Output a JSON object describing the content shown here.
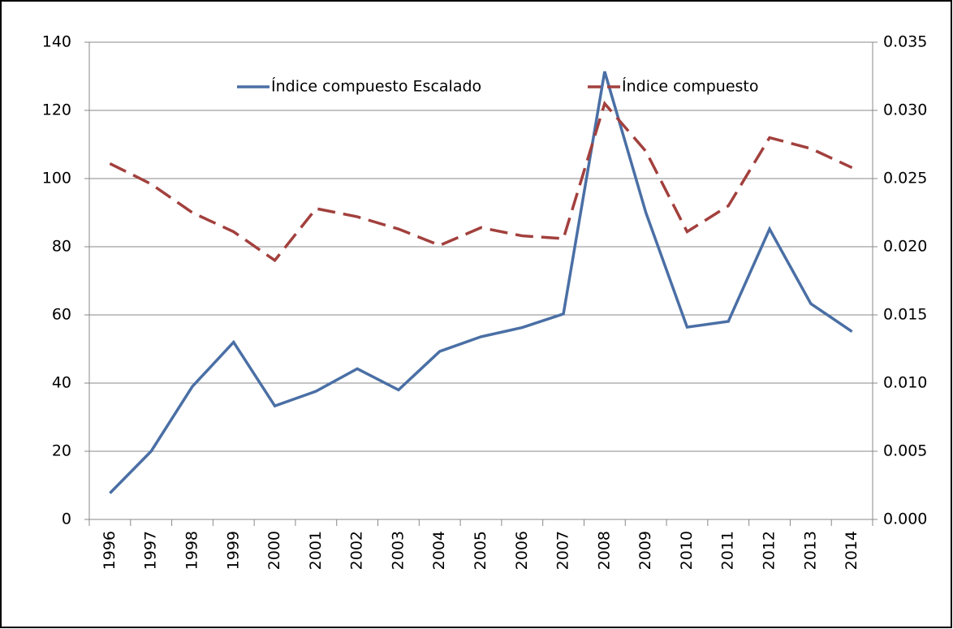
{
  "chart_data": {
    "type": "line",
    "categories": [
      "1996",
      "1997",
      "1998",
      "1999",
      "2000",
      "2001",
      "2002",
      "2003",
      "2004",
      "2005",
      "2006",
      "2007",
      "2008",
      "2009",
      "2010",
      "2011",
      "2012",
      "2013",
      "2014"
    ],
    "series": [
      {
        "name": "Índice compuesto Escalado",
        "color": "#4a6fa5",
        "line_style": "solid",
        "values": [
          7.7,
          20,
          39,
          52,
          33.3,
          37.6,
          44.2,
          38,
          49.3,
          53.6,
          56.3,
          60.3,
          131.4,
          90,
          56.4,
          58.1,
          85.2,
          63.3,
          55.1
        ]
      },
      {
        "name": "Índice compuesto",
        "color": "#a2403d",
        "line_style": "dashed",
        "axis": "y2",
        "values": [
          0.0261,
          0.0246,
          0.0225,
          0.0211,
          0.019,
          0.0228,
          0.0222,
          0.0213,
          0.0201,
          0.0214,
          0.0208,
          0.0206,
          0.0305,
          0.027,
          0.0211,
          0.023,
          0.028,
          0.0272,
          0.0258
        ]
      }
    ],
    "ylim": [
      0,
      140
    ],
    "yticks": [
      0,
      20,
      40,
      60,
      80,
      100,
      120,
      140
    ],
    "y2lim": [
      0,
      0.035
    ],
    "y2ticks": [
      {
        "value": 0,
        "label": "0.000"
      },
      {
        "value": 0.005,
        "label": "0.005"
      },
      {
        "value": 0.01,
        "label": "0.010"
      },
      {
        "value": 0.015,
        "label": "0.015"
      },
      {
        "value": 0.02,
        "label": "0.020"
      },
      {
        "value": 0.025,
        "label": "0.025"
      },
      {
        "value": 0.03,
        "label": "0.030"
      },
      {
        "value": 0.035,
        "label": "0.035"
      }
    ],
    "grid": true,
    "legend": "top"
  }
}
